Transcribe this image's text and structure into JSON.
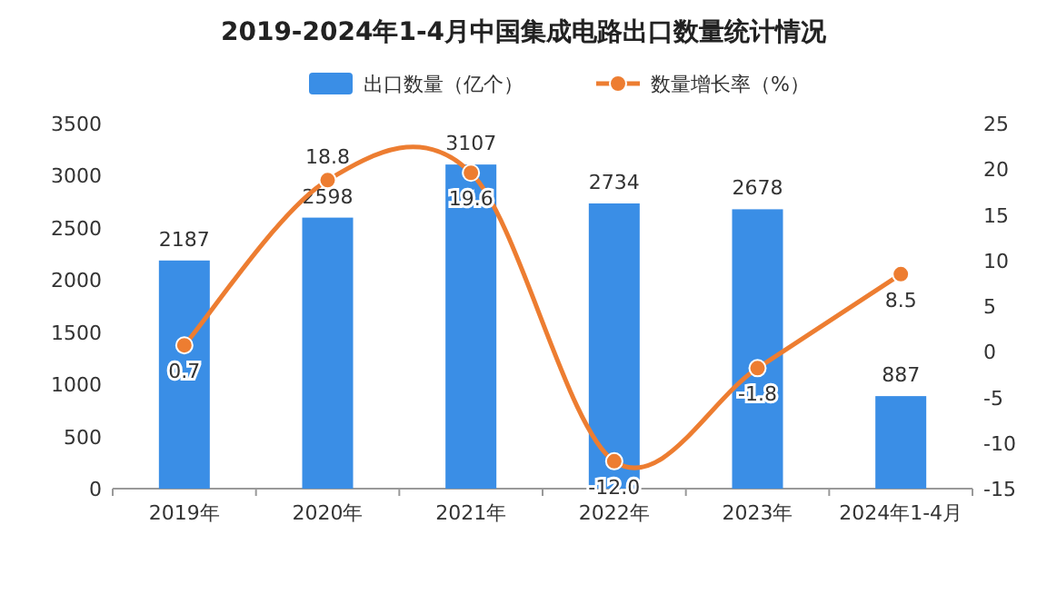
{
  "chart_data": {
    "type": "bar",
    "title": "2019-2024年1-4月中国集成电路出口数量统计情况",
    "categories": [
      "2019年",
      "2020年",
      "2021年",
      "2022年",
      "2023年",
      "2024年1-4月"
    ],
    "series": [
      {
        "name": "出口数量（亿个）",
        "color": "#3a8ee6",
        "values": [
          2187,
          2598,
          3107,
          2734,
          2678,
          887
        ],
        "value_labels": [
          "2187",
          "2598",
          "3107",
          "2734",
          "2678",
          "887"
        ]
      },
      {
        "name": "数量增长率（%）",
        "type": "line",
        "axis": "y2",
        "color": "#ed7d31",
        "marker": "circle",
        "values": [
          0.7,
          18.8,
          19.6,
          -12.0,
          -1.8,
          8.5
        ],
        "value_labels": [
          "0.7",
          "18.8",
          "19.6",
          "-12.0",
          "-1.8",
          "8.5"
        ]
      }
    ],
    "ylim": [
      0,
      3500
    ],
    "yticks": [
      0,
      500,
      1000,
      1500,
      2000,
      2500,
      3000,
      3500
    ],
    "y2lim": [
      -15,
      25
    ],
    "y2ticks": [
      -15,
      -10,
      -5,
      0,
      5,
      10,
      15,
      20,
      25
    ],
    "legend": "top",
    "grid": false
  }
}
